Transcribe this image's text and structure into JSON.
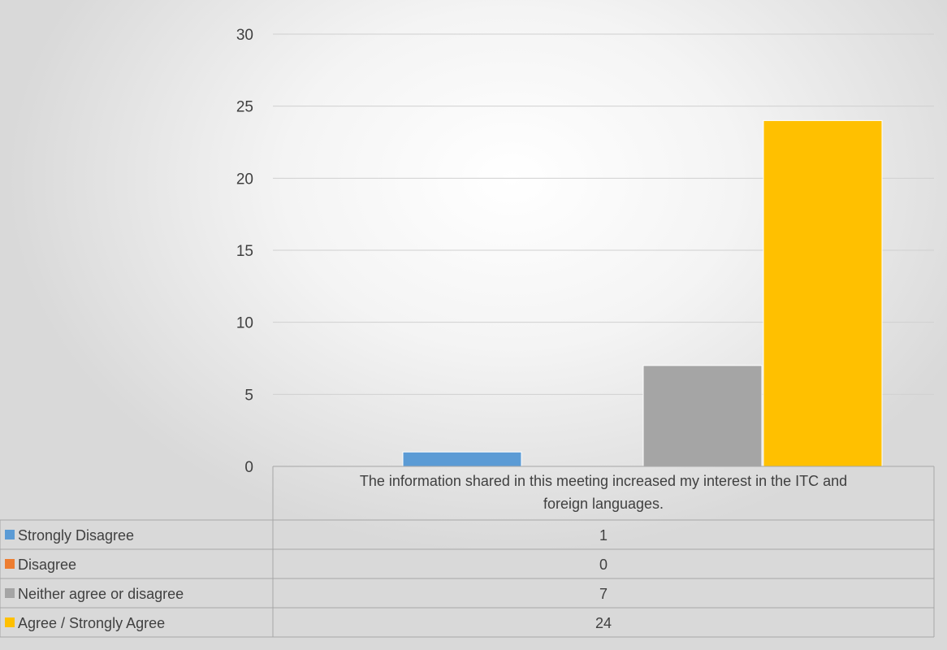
{
  "chart_data": {
    "type": "bar",
    "categories": [
      "The information shared in this meeting increased my interest in the ITC and foreign languages."
    ],
    "category_lines": [
      "The information shared in this meeting increased my interest in the ITC and",
      "foreign languages."
    ],
    "series": [
      {
        "name": "Strongly Disagree",
        "values": [
          1
        ],
        "color": "#5b9bd5"
      },
      {
        "name": "Disagree",
        "values": [
          0
        ],
        "color": "#ed7d31"
      },
      {
        "name": "Neither agree or disagree",
        "values": [
          7
        ],
        "color": "#a5a5a5"
      },
      {
        "name": "Agree / Strongly Agree",
        "values": [
          24
        ],
        "color": "#ffc000"
      }
    ],
    "yticks": [
      0,
      5,
      10,
      15,
      20,
      25,
      30
    ],
    "ylim": [
      0,
      30
    ],
    "grid": true,
    "legend": "data-table",
    "title": "",
    "xlabel": "",
    "ylabel": ""
  }
}
